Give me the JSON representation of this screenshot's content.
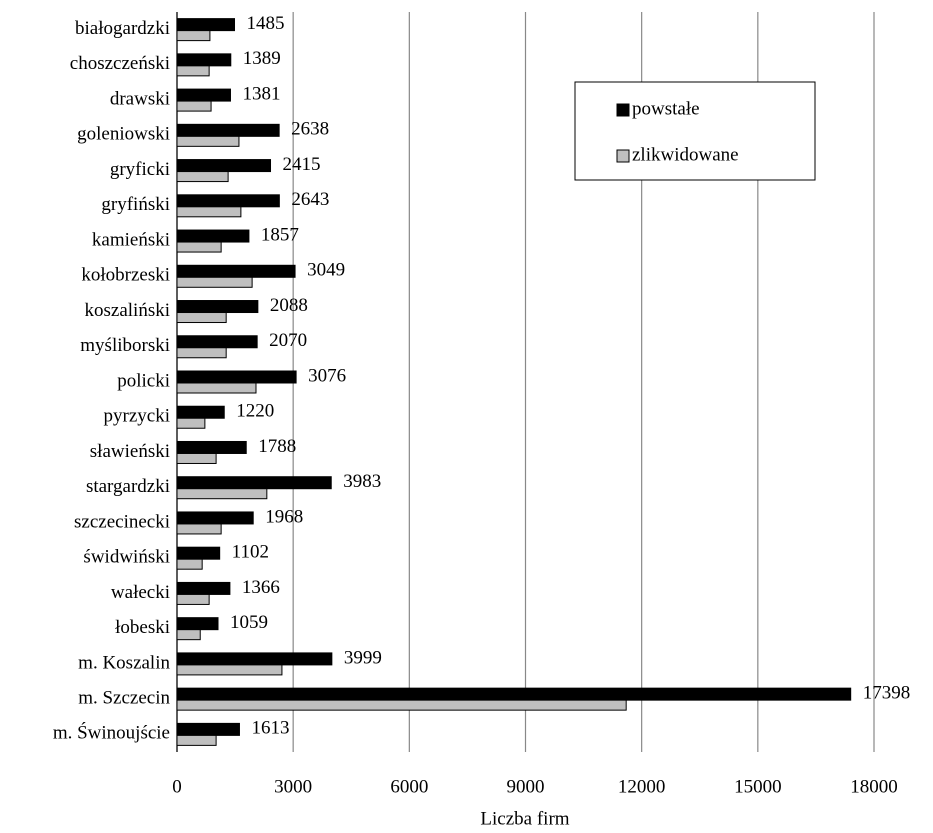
{
  "chart_data": {
    "type": "hbar",
    "x_label": "Liczba firm",
    "categories": [
      "białogardzki",
      "choszczeński",
      "drawski",
      "goleniowski",
      "gryficki",
      "gryfiński",
      "kamieński",
      "kołobrzeski",
      "koszaliński",
      "myśliborski",
      "policki",
      "pyrzycki",
      "sławieński",
      "stargardzki",
      "szczecinecki",
      "świdwiński",
      "wałecki",
      "łobeski",
      "m. Koszalin",
      "m. Szczecin",
      "m. Świnoujście"
    ],
    "series": [
      {
        "name": "powstałe",
        "color": "#000000",
        "values": [
          1485,
          1389,
          1381,
          2638,
          2415,
          2643,
          1857,
          3049,
          2088,
          2070,
          3076,
          1220,
          1788,
          3983,
          1968,
          1102,
          1366,
          1059,
          3999,
          17398,
          1613
        ],
        "show_labels": true
      },
      {
        "name": "zlikwidowane",
        "color": "#bfbfbf",
        "values": [
          850,
          830,
          880,
          1600,
          1320,
          1650,
          1140,
          1940,
          1270,
          1270,
          2040,
          720,
          1010,
          2320,
          1140,
          650,
          830,
          600,
          2710,
          11600,
          1010
        ],
        "show_labels": false
      }
    ],
    "xlim": [
      0,
      18000
    ],
    "xticks": [
      0,
      3000,
      6000,
      9000,
      12000,
      15000,
      18000
    ],
    "grid": true,
    "legend": "upper right"
  }
}
